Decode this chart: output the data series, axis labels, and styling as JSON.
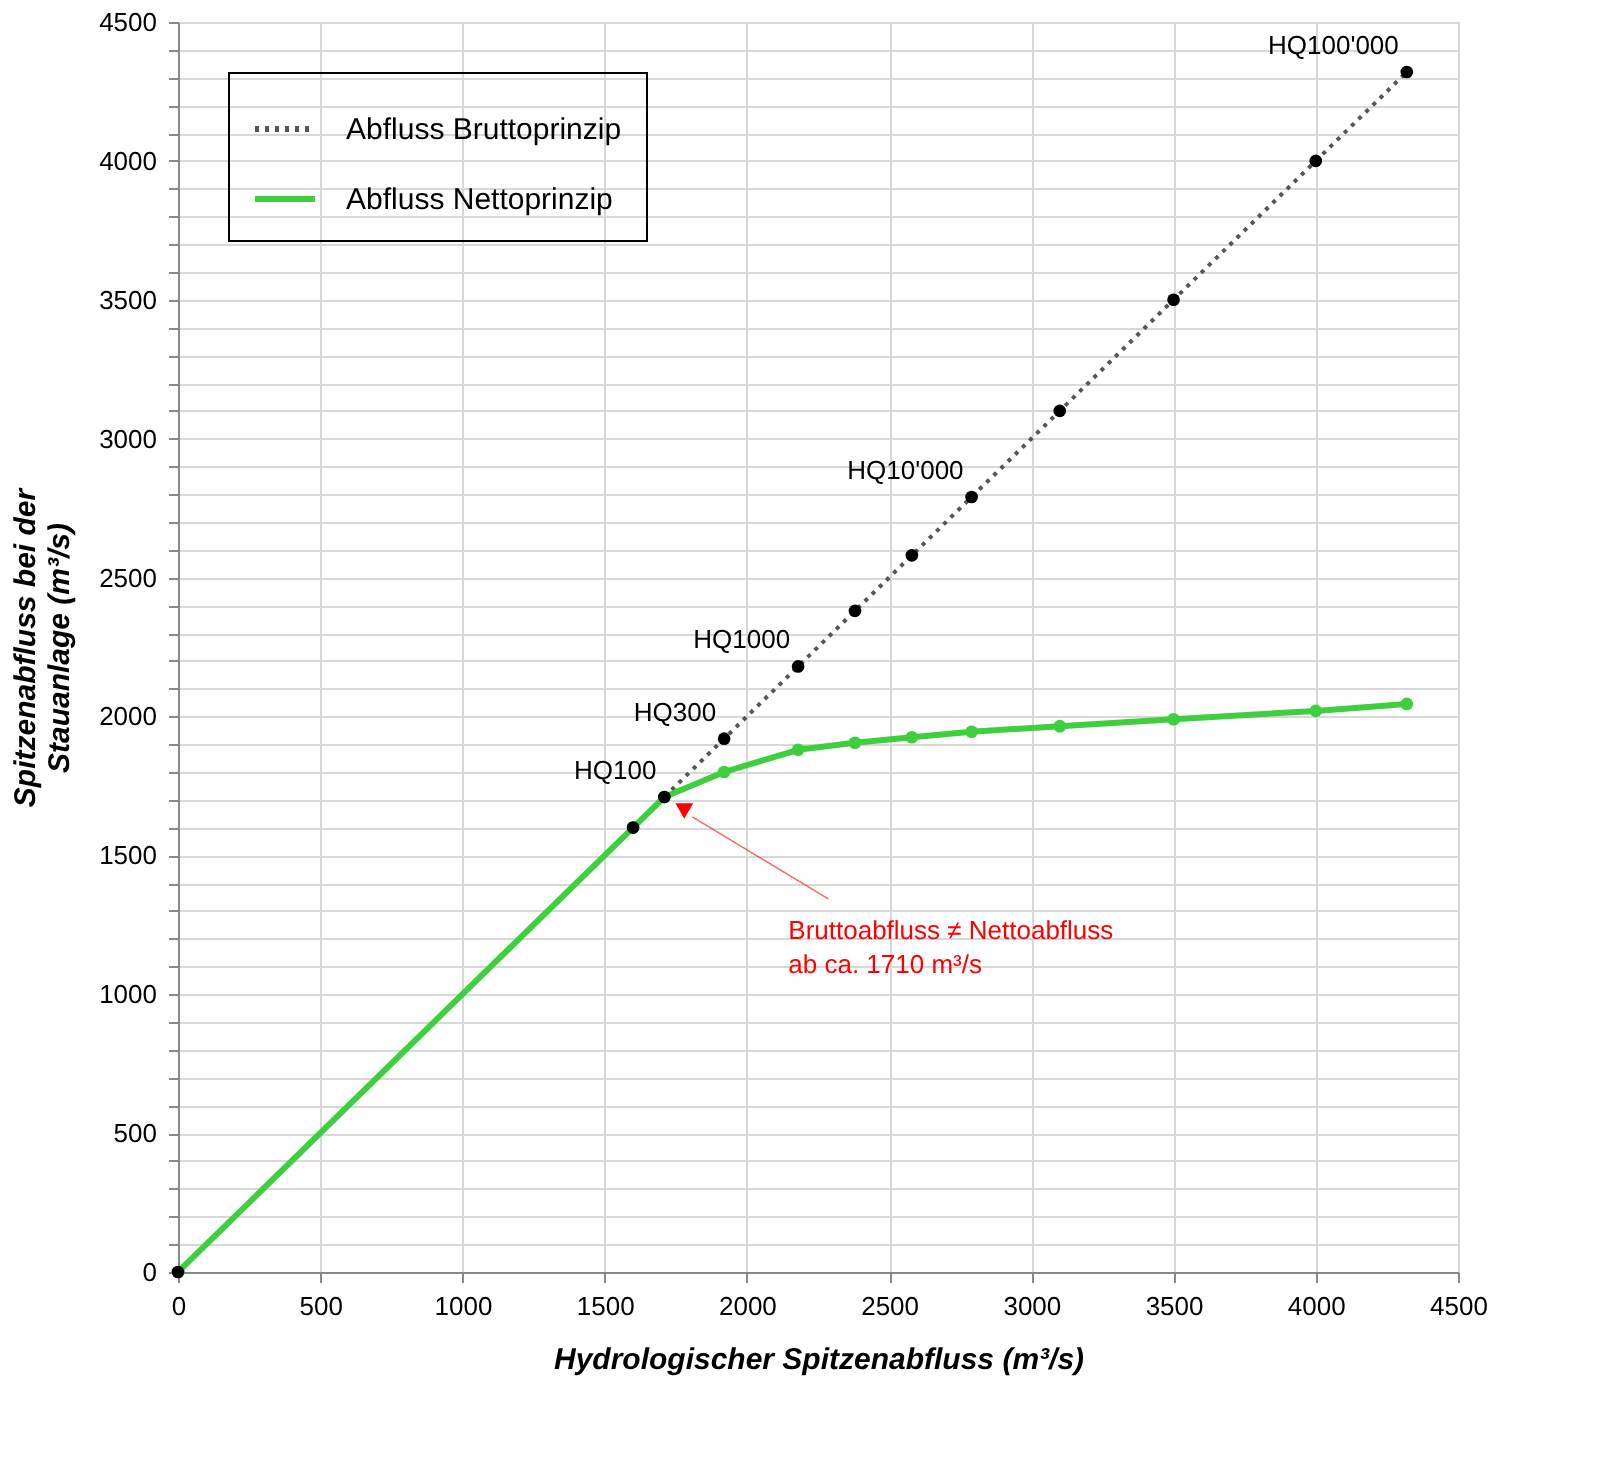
{
  "chart_data": {
    "type": "line",
    "xlabel": "Hydrologischer Spitzenabfluss (m³/s)",
    "ylabel": "Spitzenabfluss bei der\nStauanlage (m³/s)",
    "xlim": [
      0,
      4500
    ],
    "ylim": [
      0,
      4500
    ],
    "xticks": [
      0,
      500,
      1000,
      1500,
      2000,
      2500,
      3000,
      3500,
      4000,
      4500
    ],
    "yticks": [
      0,
      {
        "value": 100,
        "label": null
      },
      {
        "value": 200,
        "label": null
      },
      {
        "value": 300,
        "label": null
      },
      {
        "value": 400,
        "label": null
      },
      500,
      {
        "value": 600,
        "label": null
      },
      {
        "value": 700,
        "label": null
      },
      {
        "value": 800,
        "label": null
      },
      {
        "value": 900,
        "label": null
      },
      1000,
      {
        "value": 1100,
        "label": null
      },
      {
        "value": 1200,
        "label": null
      },
      {
        "value": 1300,
        "label": null
      },
      {
        "value": 1400,
        "label": null
      },
      1500,
      {
        "value": 1600,
        "label": null
      },
      {
        "value": 1700,
        "label": null
      },
      {
        "value": 1800,
        "label": null
      },
      {
        "value": 1900,
        "label": null
      },
      2000,
      {
        "value": 2100,
        "label": null
      },
      {
        "value": 2200,
        "label": null
      },
      {
        "value": 2300,
        "label": null
      },
      {
        "value": 2400,
        "label": null
      },
      2500,
      {
        "value": 2600,
        "label": null
      },
      {
        "value": 2700,
        "label": null
      },
      {
        "value": 2800,
        "label": null
      },
      {
        "value": 2900,
        "label": null
      },
      3000,
      {
        "value": 3100,
        "label": null
      },
      {
        "value": 3200,
        "label": null
      },
      {
        "value": 3300,
        "label": null
      },
      {
        "value": 3400,
        "label": null
      },
      3500,
      {
        "value": 3600,
        "label": null
      },
      {
        "value": 3700,
        "label": null
      },
      {
        "value": 3800,
        "label": null
      },
      {
        "value": 3900,
        "label": null
      },
      4000,
      {
        "value": 4100,
        "label": null
      },
      {
        "value": 4200,
        "label": null
      },
      {
        "value": 4300,
        "label": null
      },
      {
        "value": 4400,
        "label": null
      },
      4500
    ],
    "grid": true,
    "legend": "top left",
    "marker": "circle",
    "series": [
      {
        "name": "Abfluss Bruttoprinzip",
        "color": "#555555",
        "line_style": "dotted",
        "x": [
          0,
          1600,
          1710,
          1920,
          2180,
          2380,
          2580,
          2790,
          3100,
          3500,
          4000,
          4320
        ],
        "values": [
          0,
          1600,
          1710,
          1920,
          2180,
          2380,
          2580,
          2790,
          3100,
          3500,
          4000,
          4320
        ]
      },
      {
        "name": "Abfluss Nettoprinzip",
        "color": "#3ecf3e",
        "line_style": "solid",
        "x": [
          0,
          1600,
          1710,
          1920,
          2180,
          2380,
          2580,
          2790,
          3100,
          3500,
          4000,
          4320
        ],
        "values": [
          0,
          1600,
          1710,
          1800,
          1880,
          1905,
          1925,
          1945,
          1965,
          1990,
          2020,
          2045
        ]
      }
    ],
    "annotations": [
      {
        "text": "HQ100",
        "x": 1710,
        "y": 1710
      },
      {
        "text": "HQ300",
        "x": 1920,
        "y": 1920
      },
      {
        "text": "HQ1000",
        "x": 2180,
        "y": 2180
      },
      {
        "text": "HQ10'000",
        "x": 2790,
        "y": 2790
      },
      {
        "text": "HQ100'000",
        "x": 4320,
        "y": 4320
      },
      {
        "text": "Bruttoabfluss ≠ Nettoabfluss\nab ca. 1710 m³/s",
        "x": 1780,
        "y": 1660
      }
    ]
  }
}
